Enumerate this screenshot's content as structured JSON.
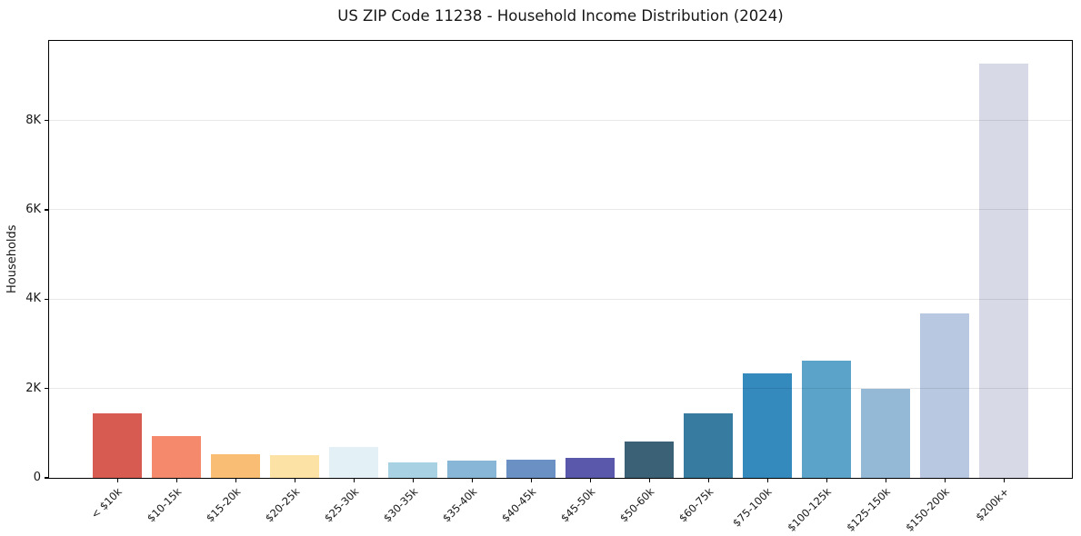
{
  "chart_data": {
    "type": "bar",
    "title": "US ZIP Code 11238 - Household Income Distribution (2024)",
    "xlabel": "",
    "ylabel": "Households",
    "categories": [
      "< $10k",
      "$10-15k",
      "$15-20k",
      "$20-25k",
      "$25-30k",
      "$30-35k",
      "$35-40k",
      "$40-45k",
      "$45-50k",
      "$50-60k",
      "$60-75k",
      "$75-100k",
      "$100-125k",
      "$125-150k",
      "$150-200k",
      "$200k+"
    ],
    "values": [
      1450,
      940,
      520,
      500,
      700,
      345,
      385,
      415,
      450,
      810,
      1450,
      2340,
      2630,
      1990,
      3680,
      9280
    ],
    "bar_colors": [
      "#d85b52",
      "#f48a6b",
      "#fabd74",
      "#fce3a5",
      "#e3f0f5",
      "#a8d2e4",
      "#88b6d6",
      "#6b90c4",
      "#5a58ab",
      "#3a6175",
      "#387ba0",
      "#3489bd",
      "#5ba3c9",
      "#93b9d6",
      "#b8c8e0",
      "#d8d9e6"
    ],
    "yticks": [
      {
        "value": 0,
        "label": "0"
      },
      {
        "value": 2000,
        "label": "2K"
      },
      {
        "value": 4000,
        "label": "4K"
      },
      {
        "value": 6000,
        "label": "6K"
      },
      {
        "value": 8000,
        "label": "8K"
      }
    ],
    "ylim": [
      0,
      9760
    ],
    "x_tick_rotation": 45,
    "grid": "horizontal-major",
    "grid_over_bars": true,
    "legend": "none",
    "spine_color": "#000000",
    "grid_color": "rgba(0,0,0,0.09)",
    "background_color": "#ffffff"
  }
}
